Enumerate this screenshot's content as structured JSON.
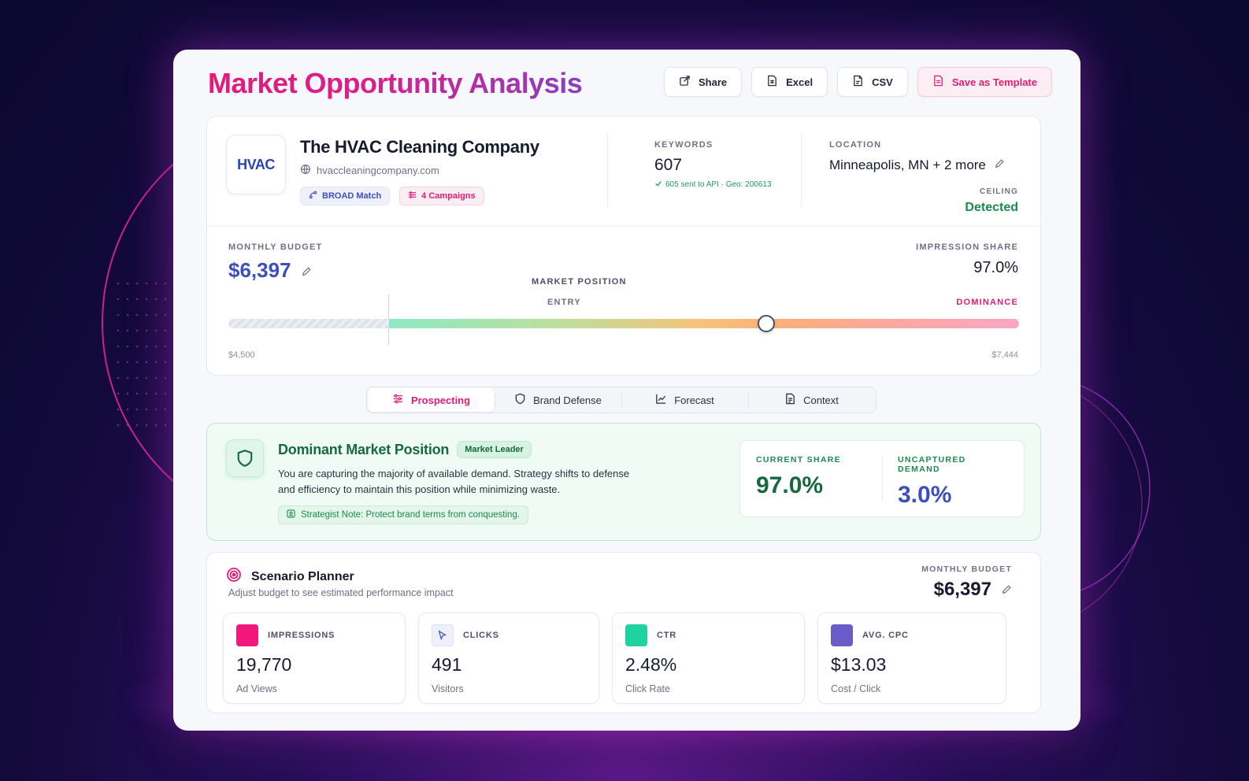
{
  "header": {
    "title": "Market Opportunity Analysis",
    "actions": [
      {
        "label": "Share",
        "icon": "share-icon"
      },
      {
        "label": "Excel",
        "icon": "spreadsheet-icon"
      },
      {
        "label": "CSV",
        "icon": "file-icon"
      },
      {
        "label": "Save as Template",
        "icon": "template-icon"
      }
    ]
  },
  "company": {
    "logo_text": "HVAC",
    "name": "The HVAC Cleaning Company",
    "website": "hvaccleaningcompany.com",
    "chips": {
      "match": "BROAD Match",
      "campaigns": "4 Campaigns"
    }
  },
  "keywords": {
    "label": "KEYWORDS",
    "value": "607",
    "sub": "605 sent to API · Geo: 200613"
  },
  "location": {
    "label": "LOCATION",
    "value": "Minneapolis, MN + 2 more"
  },
  "ceiling": {
    "label": "CEILING",
    "value": "Detected"
  },
  "budget": {
    "label": "MONTHLY BUDGET",
    "value": "$6,397",
    "impression_label": "IMPRESSION SHARE",
    "impression_value": "97.0%",
    "market_position_label": "MARKET POSITION",
    "entry_label": "ENTRY",
    "dominance_label": "DOMINANCE",
    "min": "$4,500",
    "max": "$7,444",
    "slider_fraction": 0.68
  },
  "tabs": [
    {
      "label": "Prospecting",
      "icon": "sliders-icon",
      "active": true
    },
    {
      "label": "Brand Defense",
      "icon": "shield-icon",
      "active": false
    },
    {
      "label": "Forecast",
      "icon": "chart-line-icon",
      "active": false
    },
    {
      "label": "Context",
      "icon": "document-icon",
      "active": false
    }
  ],
  "dominant": {
    "title": "Dominant Market Position",
    "badge": "Market Leader",
    "description": "You are capturing the majority of available demand. Strategy shifts to defense and efficiency to maintain this position while minimizing waste.",
    "note": "Strategist Note: Protect brand terms from conquesting.",
    "current_share_label": "CURRENT SHARE",
    "current_share": "97.0%",
    "uncaptured_label": "UNCAPTURED DEMAND",
    "uncaptured": "3.0%"
  },
  "scenario": {
    "title": "Scenario Planner",
    "subtitle": "Adjust budget to see estimated performance impact",
    "budget_label": "MONTHLY BUDGET",
    "budget_value": "$6,397",
    "metrics": [
      {
        "label": "IMPRESSIONS",
        "value": "19,770",
        "desc": "Ad Views",
        "color": "#f0187d"
      },
      {
        "label": "CLICKS",
        "value": "491",
        "desc": "Visitors",
        "color": "#eef1fb"
      },
      {
        "label": "CTR",
        "value": "2.48%",
        "desc": "Click Rate",
        "color": "#1fd3a0"
      },
      {
        "label": "AVG. CPC",
        "value": "$13.03",
        "desc": "Cost / Click",
        "color": "#6a5bc9"
      }
    ]
  },
  "colors": {
    "accent_pink": "#e11d74",
    "accent_blue": "#3b4fbf",
    "success_green": "#1a8a4e"
  }
}
